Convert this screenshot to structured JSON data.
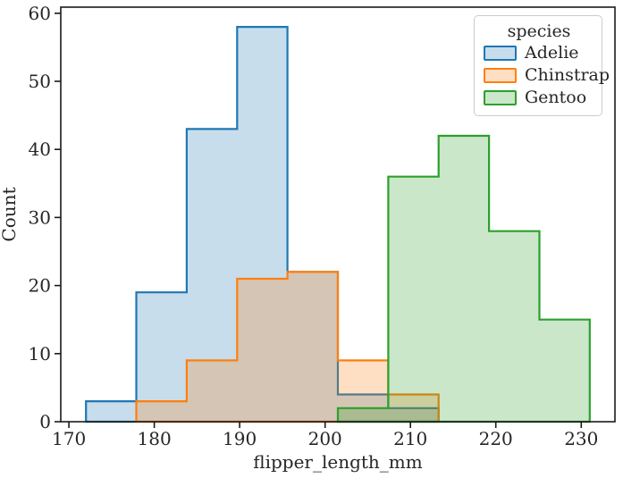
{
  "chart_data": {
    "type": "bar",
    "subtype": "step-histogram",
    "title": "",
    "xlabel": "flipper_length_mm",
    "ylabel": "Count",
    "xlim": [
      169.05,
      233.95
    ],
    "ylim": [
      0,
      60.9
    ],
    "xticks": [
      170,
      180,
      190,
      200,
      210,
      220,
      230
    ],
    "yticks": [
      0,
      10,
      20,
      30,
      40,
      50,
      60
    ],
    "bin_width": 5.9,
    "grid": false,
    "fill_opacity": 0.25,
    "series": [
      {
        "name": "Adelie",
        "color": "#1f77b4",
        "bin_edges": [
          172.0,
          177.9,
          183.8,
          189.7,
          195.6,
          201.5,
          207.4,
          213.3
        ],
        "counts": [
          3,
          19,
          43,
          58,
          22,
          4,
          2
        ]
      },
      {
        "name": "Chinstrap",
        "color": "#ff7f0e",
        "bin_edges": [
          177.9,
          183.8,
          189.7,
          195.6,
          201.5,
          207.4,
          213.3
        ],
        "counts": [
          3,
          9,
          21,
          22,
          9,
          4
        ]
      },
      {
        "name": "Gentoo",
        "color": "#2ca02c",
        "bin_edges": [
          201.5,
          207.4,
          213.3,
          219.2,
          225.1,
          231.0
        ],
        "counts": [
          2,
          36,
          42,
          28,
          15
        ]
      }
    ],
    "legend": {
      "title": "species",
      "position": "upper right",
      "entries": [
        {
          "label": "Adelie",
          "border_color": "#1f77b4",
          "fill_color": "#c7ddec"
        },
        {
          "label": "Chinstrap",
          "border_color": "#ff7f0e",
          "fill_color": "#ffdfc3"
        },
        {
          "label": "Gentoo",
          "border_color": "#2ca02c",
          "fill_color": "#cae7ca"
        }
      ]
    },
    "axis_color": "#1a1a1a",
    "text_color": "#262626"
  }
}
